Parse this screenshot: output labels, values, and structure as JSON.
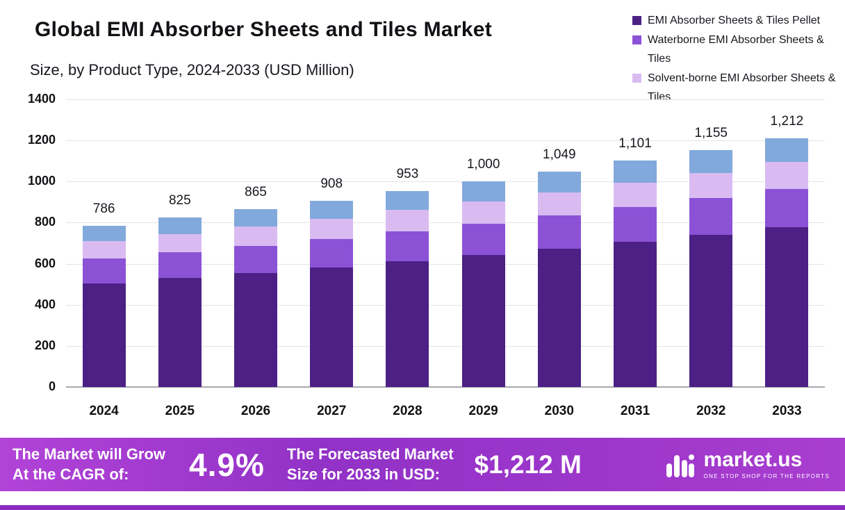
{
  "header": {
    "title": "Global EMI Absorber Sheets and Tiles Market",
    "subtitle": "Size, by Product Type, 2024-2033 (USD Million)"
  },
  "legend": [
    {
      "label": "EMI Absorber Sheets & Tiles Pellet",
      "color": "#4c2085"
    },
    {
      "label": "Waterborne EMI Absorber Sheets & Tiles",
      "color": "#8b52d6"
    },
    {
      "label": "Solvent-borne EMI Absorber Sheets & Tiles",
      "color": "#d9bbf2"
    }
  ],
  "chart_data": {
    "type": "bar",
    "stacked": true,
    "title": "Global EMI Absorber Sheets and Tiles Market",
    "subtitle": "Size, by Product Type, 2024-2033 (USD Million)",
    "categories": [
      "2024",
      "2025",
      "2026",
      "2027",
      "2028",
      "2029",
      "2030",
      "2031",
      "2032",
      "2033"
    ],
    "totals": [
      786,
      825,
      865,
      908,
      953,
      1000,
      1049,
      1101,
      1155,
      1212
    ],
    "total_labels": [
      "786",
      "825",
      "865",
      "908",
      "953",
      "1,000",
      "1,049",
      "1,101",
      "1,155",
      "1,212"
    ],
    "series": [
      {
        "name": "EMI Absorber Sheets & Tiles Pellet",
        "color": "#4c2085",
        "values": [
          505,
          530,
          555,
          583,
          612,
          642,
          673,
          707,
          742,
          778
        ]
      },
      {
        "name": "Waterborne EMI Absorber Sheets & Tiles",
        "color": "#8b52d6",
        "values": [
          120,
          126,
          132,
          139,
          146,
          153,
          161,
          168,
          177,
          186
        ]
      },
      {
        "name": "Solvent-borne EMI Absorber Sheets & Tiles",
        "color": "#d9bbf2",
        "values": [
          85,
          89,
          94,
          98,
          103,
          108,
          113,
          119,
          124,
          131
        ]
      },
      {
        "name": "Unlabeled (blue) top segment",
        "color": "#81a9dc",
        "values": [
          76,
          80,
          84,
          88,
          92,
          97,
          102,
          107,
          112,
          117
        ]
      }
    ],
    "ylim": [
      0,
      1400
    ],
    "yticks": [
      0,
      200,
      400,
      600,
      800,
      1000,
      1200,
      1400
    ],
    "grid": true,
    "legend_position": "top-right"
  },
  "banner": {
    "grow_line1": "The Market will Grow",
    "grow_line2": "At the CAGR of:",
    "cagr_value": "4.9%",
    "forecast_line1": "The Forecasted Market",
    "forecast_line2": "Size for 2033 in USD:",
    "forecast_value": "$1,212 M",
    "logo_text": "market.us",
    "logo_tagline": "ONE STOP SHOP FOR THE REPORTS"
  }
}
